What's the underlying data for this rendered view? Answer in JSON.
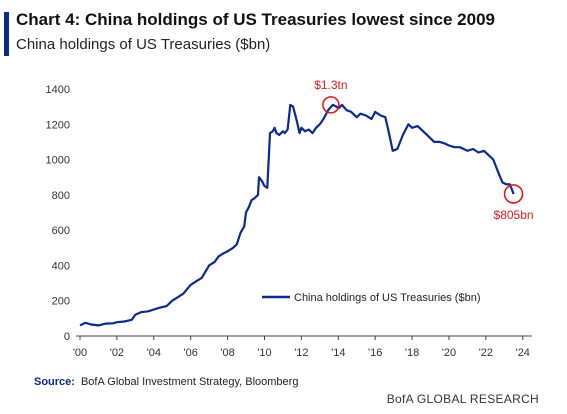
{
  "header": {
    "title": "Chart 4: China holdings of US Treasuries lowest since 2009",
    "subtitle": "China holdings of US Treasuries ($bn)"
  },
  "source": {
    "label": "Source:",
    "text": "BofA Global Investment Strategy, Bloomberg"
  },
  "footer": {
    "brand": "BofA GLOBAL RESEARCH"
  },
  "colors": {
    "line": "#0a2a8c",
    "accent": "#0a2a8c",
    "highlight": "#e0191c",
    "axis": "#444444"
  },
  "chart_data": {
    "type": "line",
    "title": "",
    "xlabel": "",
    "ylabel": "",
    "xlim": [
      2000,
      2024.5
    ],
    "ylim": [
      0,
      1400
    ],
    "x_ticks": [
      "'00",
      "'02",
      "'04",
      "'06",
      "'08",
      "'10",
      "'12",
      "'14",
      "'16",
      "'18",
      "'20",
      "'22",
      "'24"
    ],
    "x_tick_values": [
      2000,
      2002,
      2004,
      2006,
      2008,
      2010,
      2012,
      2014,
      2016,
      2018,
      2020,
      2022,
      2024
    ],
    "y_ticks": [
      0,
      200,
      400,
      600,
      800,
      1000,
      1200,
      1400
    ],
    "grid": false,
    "legend_position": "bottom-right",
    "series": [
      {
        "name": "China holdings of US Treasuries ($bn)",
        "x": [
          2000.0,
          2000.3,
          2000.6,
          2001.0,
          2001.4,
          2001.8,
          2002.0,
          2002.4,
          2002.8,
          2003.0,
          2003.3,
          2003.7,
          2004.0,
          2004.3,
          2004.7,
          2005.0,
          2005.3,
          2005.6,
          2006.0,
          2006.3,
          2006.6,
          2007.0,
          2007.3,
          2007.5,
          2007.8,
          2008.0,
          2008.3,
          2008.5,
          2008.7,
          2008.9,
          2009.0,
          2009.15,
          2009.3,
          2009.45,
          2009.55,
          2009.65,
          2009.7,
          2009.85,
          2010.0,
          2010.15,
          2010.3,
          2010.45,
          2010.55,
          2010.65,
          2010.8,
          2010.9,
          2011.0,
          2011.1,
          2011.25,
          2011.4,
          2011.55,
          2011.65,
          2011.75,
          2011.9,
          2012.0,
          2012.2,
          2012.4,
          2012.6,
          2012.8,
          2013.0,
          2013.2,
          2013.45,
          2013.7,
          2013.9,
          2014.0,
          2014.2,
          2014.45,
          2014.7,
          2015.0,
          2015.2,
          2015.5,
          2015.8,
          2016.0,
          2016.3,
          2016.55,
          2016.75,
          2016.95,
          2017.2,
          2017.5,
          2017.8,
          2018.0,
          2018.3,
          2018.6,
          2018.9,
          2019.2,
          2019.5,
          2019.8,
          2020.0,
          2020.3,
          2020.6,
          2021.0,
          2021.3,
          2021.6,
          2021.9,
          2022.1,
          2022.4,
          2022.7,
          2022.9,
          2023.1,
          2023.3,
          2023.5
        ],
        "y": [
          60,
          75,
          65,
          60,
          70,
          72,
          78,
          82,
          92,
          120,
          135,
          140,
          150,
          160,
          170,
          200,
          220,
          240,
          290,
          310,
          330,
          400,
          420,
          450,
          470,
          480,
          500,
          520,
          585,
          620,
          700,
          730,
          770,
          780,
          790,
          800,
          900,
          880,
          850,
          840,
          1150,
          1160,
          1180,
          1150,
          1140,
          1150,
          1160,
          1150,
          1170,
          1310,
          1300,
          1260,
          1220,
          1150,
          1180,
          1160,
          1170,
          1150,
          1180,
          1200,
          1230,
          1280,
          1310,
          1300,
          1290,
          1310,
          1280,
          1270,
          1240,
          1260,
          1250,
          1230,
          1270,
          1250,
          1240,
          1150,
          1050,
          1060,
          1140,
          1200,
          1180,
          1190,
          1160,
          1130,
          1100,
          1100,
          1090,
          1080,
          1070,
          1070,
          1050,
          1060,
          1040,
          1050,
          1030,
          1000,
          920,
          870,
          860,
          860,
          805
        ]
      }
    ],
    "annotations": [
      {
        "text": "$1.3tn",
        "x": 2013.6,
        "y": 1310
      },
      {
        "text": "$805bn",
        "x": 2023.5,
        "y": 805
      }
    ]
  }
}
